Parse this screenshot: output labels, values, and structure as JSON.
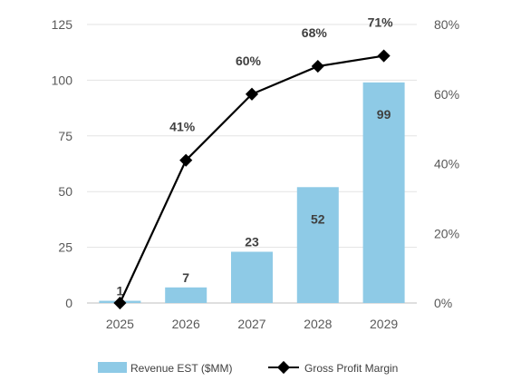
{
  "chart_data": {
    "type": "bar",
    "categories": [
      "2025",
      "2026",
      "2027",
      "2028",
      "2029"
    ],
    "series": [
      {
        "name": "Revenue EST ($MM)",
        "type": "bar",
        "axis": "left",
        "values": [
          1,
          7,
          23,
          52,
          99
        ],
        "labels": [
          "1",
          "7",
          "23",
          "52",
          "99"
        ],
        "color": "#8ecae6"
      },
      {
        "name": "Gross Profit Margin",
        "type": "line",
        "axis": "right",
        "values": [
          0,
          41,
          60,
          68,
          71
        ],
        "labels": [
          "",
          "41%",
          "60%",
          "68%",
          "71%"
        ],
        "color": "#000000"
      }
    ],
    "y_left": {
      "min": 0,
      "max": 125,
      "ticks": [
        "0",
        "25",
        "50",
        "75",
        "100",
        "125"
      ]
    },
    "y_right": {
      "min": 0,
      "max": 80,
      "ticks": [
        "0%",
        "20%",
        "40%",
        "60%",
        "80%"
      ]
    },
    "grid": true,
    "legend": "bottom"
  }
}
